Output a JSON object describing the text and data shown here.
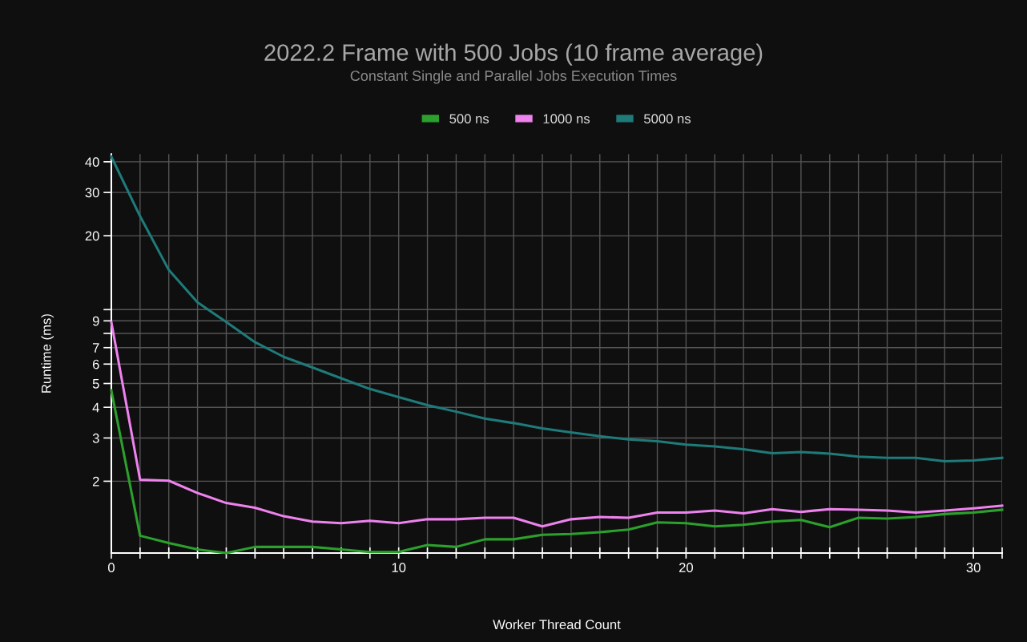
{
  "chart_data": {
    "type": "line",
    "title": "2022.2 Frame with 500 Jobs (10 frame average)",
    "subtitle": "Constant Single and Parallel Jobs Execution Times",
    "xlabel": "Worker Thread Count",
    "ylabel": "Runtime (ms)",
    "x": [
      0,
      1,
      2,
      3,
      4,
      5,
      6,
      7,
      8,
      9,
      10,
      11,
      12,
      13,
      14,
      15,
      16,
      17,
      18,
      19,
      20,
      21,
      22,
      23,
      24,
      25,
      26,
      27,
      28,
      29,
      30,
      31
    ],
    "series": [
      {
        "name": "500 ns",
        "color": "#2ca02c",
        "values": [
          4.69,
          1.2,
          1.12,
          1.055,
          1.02,
          1.08,
          1.08,
          1.08,
          1.055,
          1.03,
          1.03,
          1.1,
          1.08,
          1.16,
          1.16,
          1.21,
          1.22,
          1.24,
          1.27,
          1.36,
          1.35,
          1.31,
          1.33,
          1.37,
          1.39,
          1.3,
          1.42,
          1.41,
          1.43,
          1.47,
          1.49,
          1.53
        ]
      },
      {
        "name": "1000 ns",
        "color": "#ee82ee",
        "values": [
          8.9,
          2.03,
          2.01,
          1.79,
          1.63,
          1.56,
          1.44,
          1.37,
          1.35,
          1.38,
          1.35,
          1.4,
          1.4,
          1.42,
          1.42,
          1.31,
          1.4,
          1.43,
          1.42,
          1.49,
          1.49,
          1.52,
          1.48,
          1.54,
          1.5,
          1.54,
          1.53,
          1.52,
          1.49,
          1.52,
          1.55,
          1.59
        ]
      },
      {
        "name": "5000 ns",
        "color": "#1f7a7a",
        "values": [
          42,
          24,
          14.5,
          10.7,
          8.9,
          7.37,
          6.42,
          5.81,
          5.25,
          4.75,
          4.4,
          4.08,
          3.84,
          3.6,
          3.45,
          3.28,
          3.16,
          3.05,
          2.96,
          2.91,
          2.82,
          2.77,
          2.7,
          2.6,
          2.63,
          2.59,
          2.52,
          2.49,
          2.49,
          2.41,
          2.43,
          2.49
        ]
      }
    ],
    "log": true,
    "xlim": [
      0,
      31
    ],
    "ylim": [
      1.02,
      43
    ],
    "xticks": [
      0,
      {
        "value": 1,
        "label": null
      },
      {
        "value": 2,
        "label": null
      },
      {
        "value": 3,
        "label": null
      },
      {
        "value": 4,
        "label": null
      },
      {
        "value": 5,
        "label": null
      },
      {
        "value": 6,
        "label": null
      },
      {
        "value": 7,
        "label": null
      },
      {
        "value": 8,
        "label": null
      },
      {
        "value": 9,
        "label": null
      },
      10,
      {
        "value": 11,
        "label": null
      },
      {
        "value": 12,
        "label": null
      },
      {
        "value": 13,
        "label": null
      },
      {
        "value": 14,
        "label": null
      },
      {
        "value": 15,
        "label": null
      },
      {
        "value": 16,
        "label": null
      },
      {
        "value": 17,
        "label": null
      },
      {
        "value": 18,
        "label": null
      },
      {
        "value": 19,
        "label": null
      },
      20,
      {
        "value": 21,
        "label": null
      },
      {
        "value": 22,
        "label": null
      },
      {
        "value": 23,
        "label": null
      },
      {
        "value": 24,
        "label": null
      },
      {
        "value": 25,
        "label": null
      },
      {
        "value": 26,
        "label": null
      },
      {
        "value": 27,
        "label": null
      },
      {
        "value": 28,
        "label": null
      },
      {
        "value": 29,
        "label": null
      },
      30,
      {
        "value": 31,
        "label": null
      }
    ],
    "yticks": [
      2,
      3,
      4,
      5,
      6,
      7,
      {
        "value": 8,
        "label": null
      },
      9,
      {
        "value": 10,
        "label": null
      },
      20,
      30,
      40
    ],
    "grid": true,
    "legend": "top",
    "marker": "none",
    "line_style": "solid"
  }
}
